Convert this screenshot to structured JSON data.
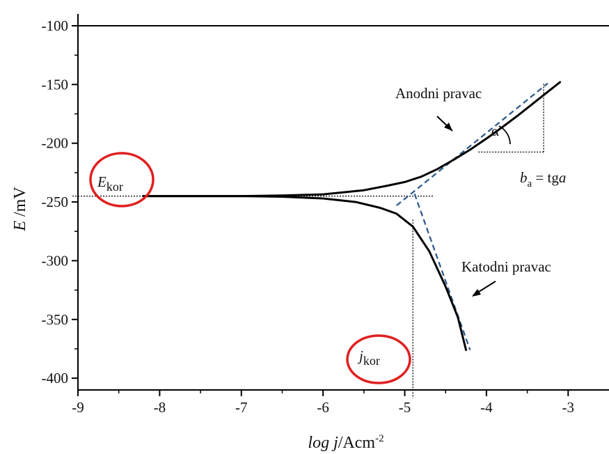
{
  "chart_data": {
    "type": "line",
    "title": "",
    "xlabel": {
      "main": "log j",
      "unit": "/Acm",
      "exp": "-2"
    },
    "ylabel": {
      "main": "E",
      "unit": " /mV"
    },
    "xlim": [
      -9,
      -2.5
    ],
    "ylim": [
      -410,
      -100
    ],
    "xticks": [
      -9,
      -8,
      -7,
      -6,
      -5,
      -4,
      -3
    ],
    "yticks": [
      -100,
      -150,
      -200,
      -250,
      -300,
      -350,
      -400
    ],
    "grid": false,
    "series": [
      {
        "role": "anodic-curve",
        "x": [
          -8.2,
          -7,
          -6.5,
          -6,
          -5.5,
          -5.2,
          -5,
          -4.8,
          -4.6,
          -4.4,
          -4.2,
          -4,
          -3.8,
          -3.6,
          -3.4,
          -3.2,
          -3.1
        ],
        "y": [
          -245,
          -245,
          -244.5,
          -243.5,
          -240,
          -236,
          -233,
          -228.5,
          -222,
          -214,
          -205.5,
          -196,
          -186,
          -175.5,
          -164.5,
          -153.5,
          -148
        ]
      },
      {
        "role": "cathodic-curve",
        "x": [
          -8.2,
          -7,
          -6.5,
          -6,
          -5.6,
          -5.3,
          -5.1,
          -4.9,
          -4.7,
          -4.5,
          -4.35,
          -4.25
        ],
        "y": [
          -245,
          -245,
          -245.5,
          -247,
          -250,
          -255,
          -260,
          -271,
          -292,
          -322,
          -348,
          -376
        ]
      },
      {
        "role": "anodic-tafel-line",
        "x": [
          -5.1,
          -3.25
        ],
        "y": [
          -253,
          -149
        ]
      },
      {
        "role": "cathodic-tafel-line",
        "x": [
          -4.88,
          -4.2
        ],
        "y": [
          -243,
          -376
        ]
      }
    ],
    "reference_lines": {
      "e_kor": -245,
      "j_kor": -4.9,
      "slope_triangle": {
        "x0": -4.1,
        "x1": -3.3,
        "y_low": -207.5,
        "y_high": -149
      }
    },
    "annotations": {
      "e_kor": {
        "main": "E",
        "sub": "kor"
      },
      "j_kor": {
        "main": "j",
        "sub": "kor"
      },
      "anodic": "Anodni pravac",
      "cathodic": "Katodni pravac",
      "alpha": "α",
      "ba_formula": {
        "main": "b",
        "sub": "a",
        "rest": " = tg",
        "var": "a"
      }
    },
    "colors": {
      "curve": "#000000",
      "tafel_dash": "#2f5b8c",
      "highlight_circle": "#e02020"
    }
  }
}
